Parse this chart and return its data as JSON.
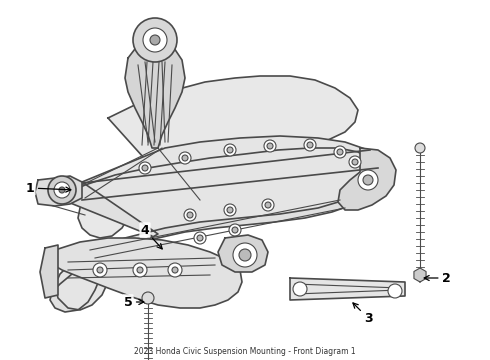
{
  "title": "2023 Honda Civic Suspension Mounting - Front Diagram 1",
  "background_color": "#ffffff",
  "line_color": "#4a4a4a",
  "label_color": "#000000",
  "fig_width": 4.9,
  "fig_height": 3.6,
  "dpi": 100
}
